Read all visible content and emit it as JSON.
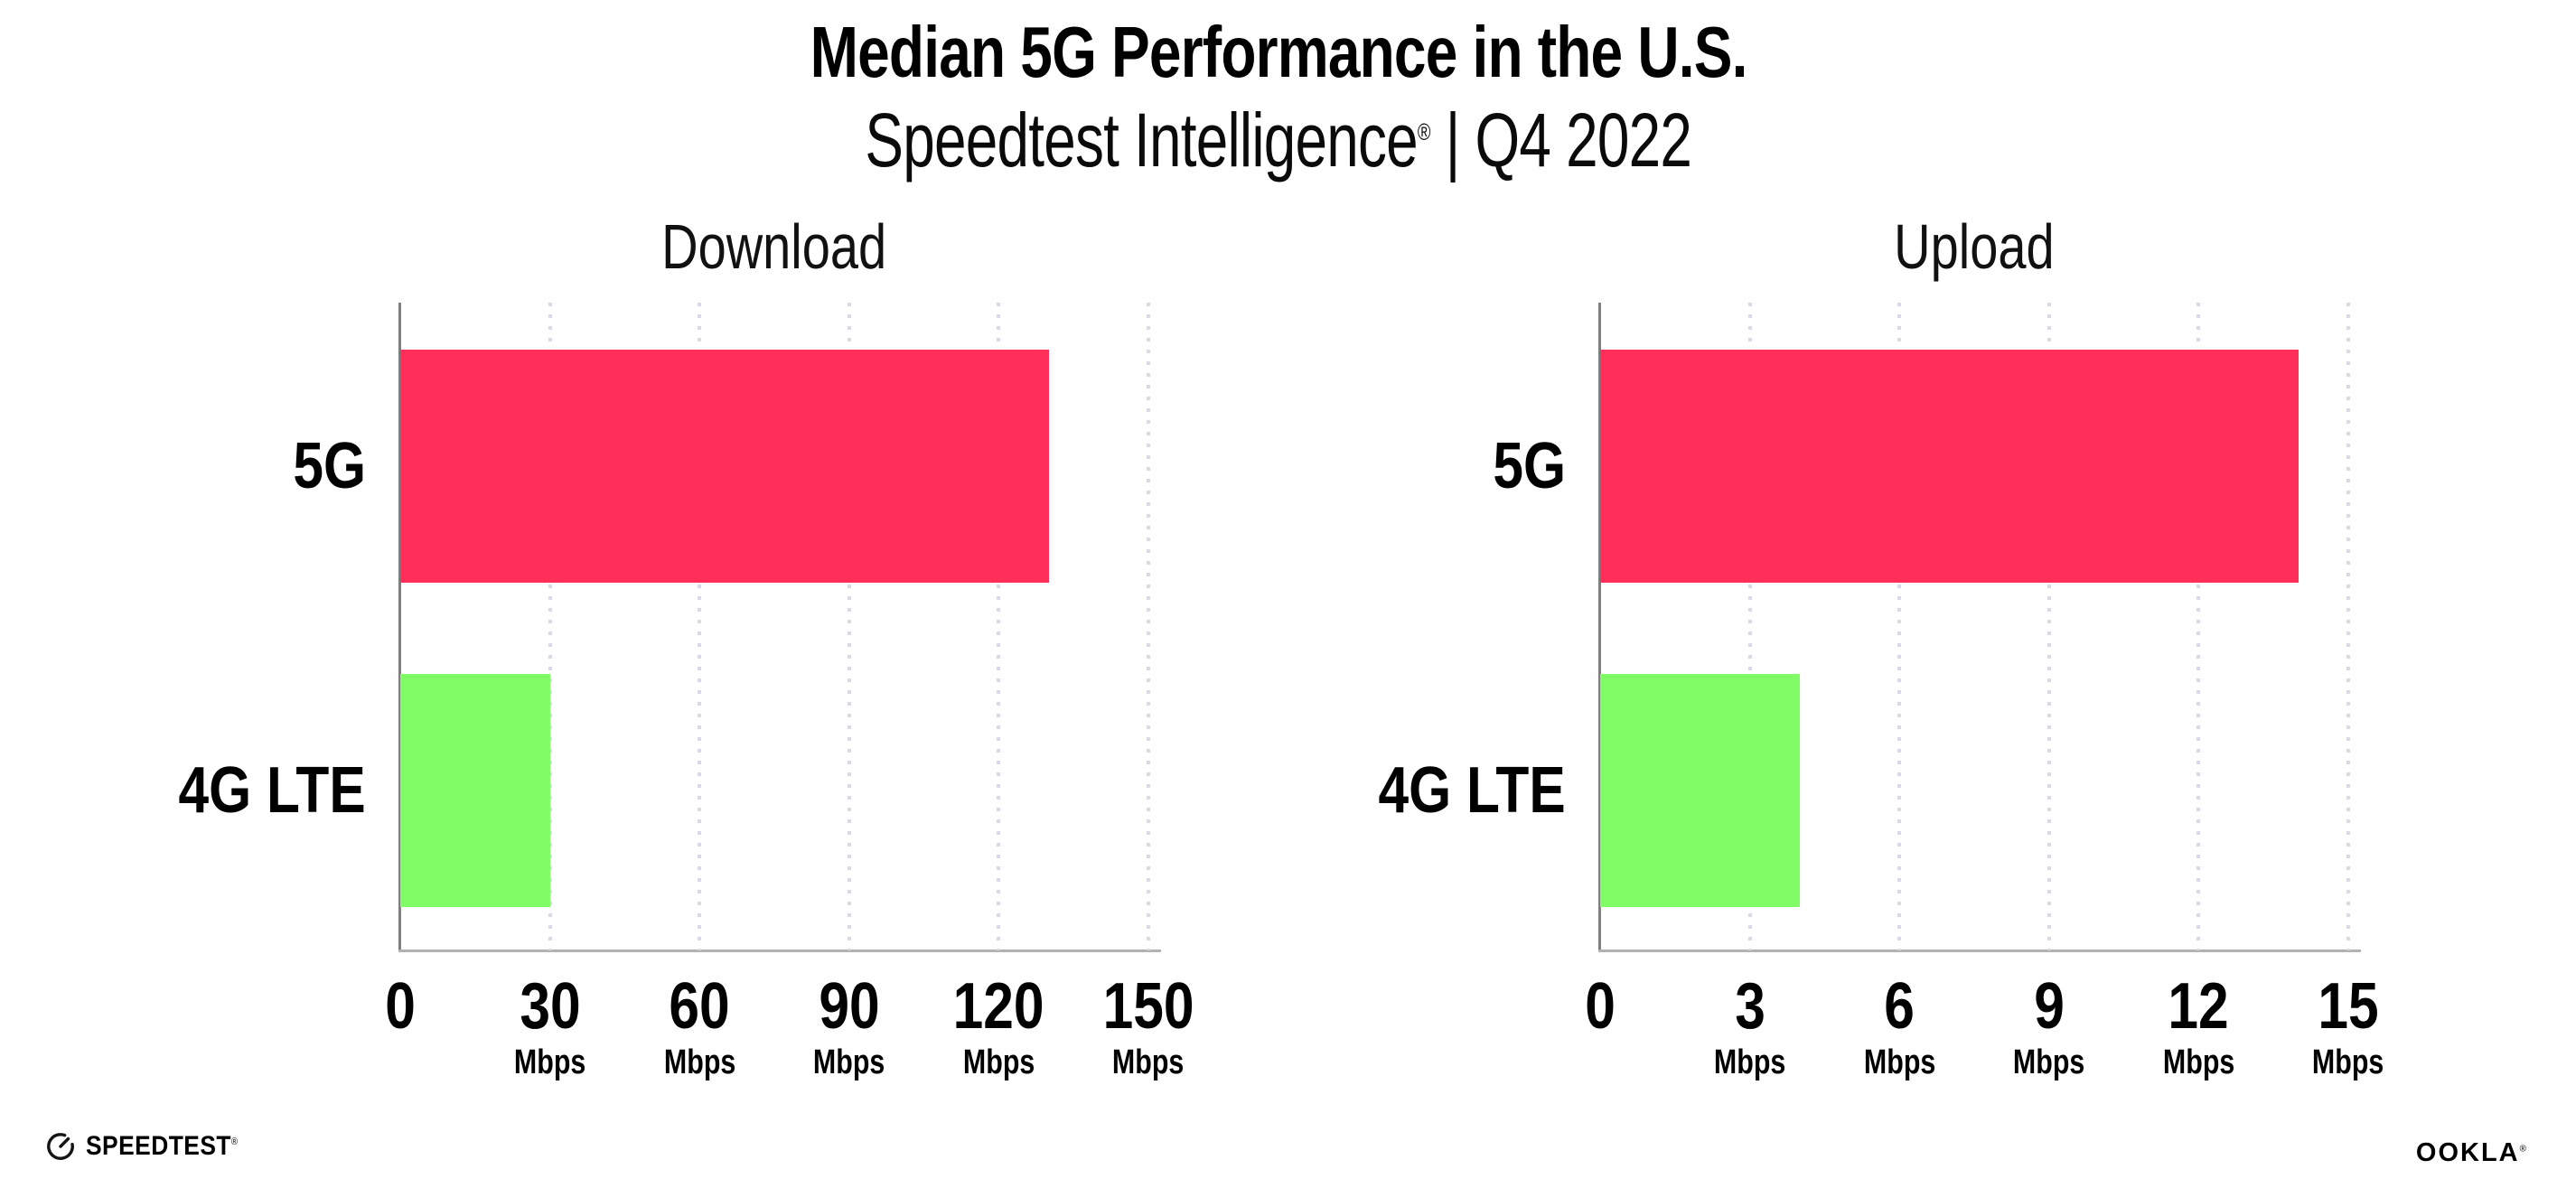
{
  "header": {
    "title": "Median 5G Performance in the U.S.",
    "subtitle_brand": "Speedtest Intelligence",
    "subtitle_reg": "®",
    "subtitle_rest": " | Q4 2022"
  },
  "colors": {
    "bar_5g": "#ff2f59",
    "bar_4g_lte": "#7ffc66",
    "gridline": "#d9dae6",
    "x_axis_line": "#b2b2b2",
    "y_axis_line": "#7f7f7f",
    "text": "#000000"
  },
  "chart_data": [
    {
      "type": "bar",
      "orientation": "horizontal",
      "title": "Download",
      "categories": [
        "5G",
        "4G LTE"
      ],
      "values": [
        130,
        30
      ],
      "unit": "Mbps",
      "xlim": [
        0,
        150
      ],
      "xticks": [
        0,
        30,
        60,
        90,
        120,
        150
      ],
      "tick_unit_label": "Mbps",
      "series_colors": [
        "#ff2f59",
        "#7ffc66"
      ],
      "grid": "vertical-dotted",
      "legend": "none"
    },
    {
      "type": "bar",
      "orientation": "horizontal",
      "title": "Upload",
      "categories": [
        "5G",
        "4G LTE"
      ],
      "values": [
        14,
        4
      ],
      "unit": "Mbps",
      "xlim": [
        0,
        15
      ],
      "xticks": [
        0,
        3,
        6,
        9,
        12,
        15
      ],
      "tick_unit_label": "Mbps",
      "series_colors": [
        "#ff2f59",
        "#7ffc66"
      ],
      "grid": "vertical-dotted",
      "legend": "none"
    }
  ],
  "footer": {
    "speedtest_label": "SPEEDTEST",
    "speedtest_mark": "®",
    "ookla_label": "OOKLA",
    "ookla_mark": "®"
  }
}
